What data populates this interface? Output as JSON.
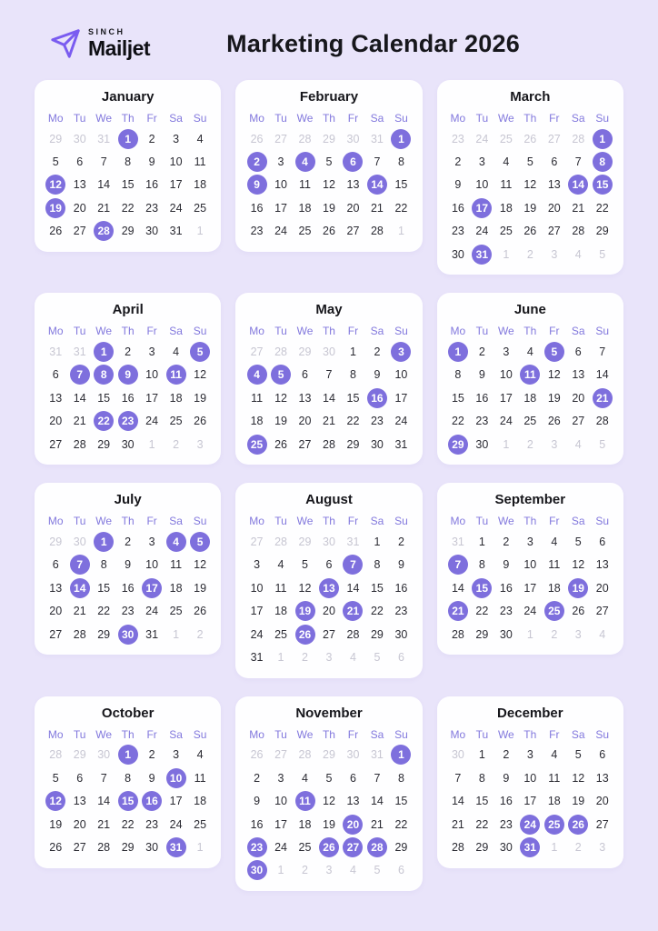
{
  "header": {
    "brand_top": "SINCH",
    "brand_name": "Mailjet",
    "title": "Marketing Calendar 2026"
  },
  "colors": {
    "background": "#e9e4fa",
    "card": "#fefeff",
    "accent": "#7e6fdd",
    "weekday_label": "#8278dd",
    "day_text": "#2b2b33",
    "muted_day_text": "#c7c6d2",
    "title_text": "#17171c",
    "logo_purple": "#7a5cf0"
  },
  "weekdays": [
    "Mo",
    "Tu",
    "We",
    "Th",
    "Fr",
    "Sa",
    "Su"
  ],
  "legend": {
    "muted_suffix": "m = day from adjacent month (grayed)",
    "highlight_suffix": "h = marketing date highlighted with purple circle"
  },
  "months": [
    {
      "name": "January",
      "cells": [
        "29m",
        "30m",
        "31m",
        "1h",
        "2",
        "3",
        "4",
        "5",
        "6",
        "7",
        "8",
        "9",
        "10",
        "11",
        "12h",
        "13",
        "14",
        "15",
        "16",
        "17",
        "18",
        "19h",
        "20",
        "21",
        "22",
        "23",
        "24",
        "25",
        "26",
        "27",
        "28h",
        "29",
        "30",
        "31",
        "1m"
      ]
    },
    {
      "name": "February",
      "cells": [
        "26m",
        "27m",
        "28m",
        "29m",
        "30m",
        "31m",
        "1h",
        "2h",
        "3",
        "4h",
        "5",
        "6h",
        "7",
        "8",
        "9h",
        "10",
        "11",
        "12",
        "13",
        "14h",
        "15",
        "16",
        "17",
        "18",
        "19",
        "20",
        "21",
        "22",
        "23",
        "24",
        "25",
        "26",
        "27",
        "28",
        "1m"
      ]
    },
    {
      "name": "March",
      "cells": [
        "23m",
        "24m",
        "25m",
        "26m",
        "27m",
        "28m",
        "1h",
        "2",
        "3",
        "4",
        "5",
        "6",
        "7",
        "8h",
        "9",
        "10",
        "11",
        "12",
        "13",
        "14h",
        "15h",
        "16",
        "17h",
        "18",
        "19",
        "20",
        "21",
        "22",
        "23",
        "24",
        "25",
        "26",
        "27",
        "28",
        "29",
        "30",
        "31h",
        "1m",
        "2m",
        "3m",
        "4m",
        "5m"
      ]
    },
    {
      "name": "April",
      "cells": [
        "31m",
        "31m",
        "1h",
        "2",
        "3",
        "4",
        "5h",
        "6",
        "7h",
        "8h",
        "9h",
        "10",
        "11h",
        "12",
        "13",
        "14",
        "15",
        "16",
        "17",
        "18",
        "19",
        "20",
        "21",
        "22h",
        "23h",
        "24",
        "25",
        "26",
        "27",
        "28",
        "29",
        "30",
        "1m",
        "2m",
        "3m"
      ]
    },
    {
      "name": "May",
      "cells": [
        "27m",
        "28m",
        "29m",
        "30m",
        "1",
        "2",
        "3h",
        "4h",
        "5h",
        "6",
        "7",
        "8",
        "9",
        "10",
        "11",
        "12",
        "13",
        "14",
        "15",
        "16h",
        "17",
        "18",
        "19",
        "20",
        "21",
        "22",
        "23",
        "24",
        "25h",
        "26",
        "27",
        "28",
        "29",
        "30",
        "31"
      ]
    },
    {
      "name": "June",
      "cells": [
        "1h",
        "2",
        "3",
        "4",
        "5h",
        "6",
        "7",
        "8",
        "9",
        "10",
        "11h",
        "12",
        "13",
        "14",
        "15",
        "16",
        "17",
        "18",
        "19",
        "20",
        "21h",
        "22",
        "23",
        "24",
        "25",
        "26",
        "27",
        "28",
        "29h",
        "30",
        "1m",
        "2m",
        "3m",
        "4m",
        "5m"
      ]
    },
    {
      "name": "July",
      "cells": [
        "29m",
        "30m",
        "1h",
        "2",
        "3",
        "4h",
        "5h",
        "6",
        "7h",
        "8",
        "9",
        "10",
        "11",
        "12",
        "13",
        "14h",
        "15",
        "16",
        "17h",
        "18",
        "19",
        "20",
        "21",
        "22",
        "23",
        "24",
        "25",
        "26",
        "27",
        "28",
        "29",
        "30h",
        "31",
        "1m",
        "2m"
      ]
    },
    {
      "name": "August",
      "cells": [
        "27m",
        "28m",
        "29m",
        "30m",
        "31m",
        "1",
        "2",
        "3",
        "4",
        "5",
        "6",
        "7h",
        "8",
        "9",
        "10",
        "11",
        "12",
        "13h",
        "14",
        "15",
        "16",
        "17",
        "18",
        "19h",
        "20",
        "21h",
        "22",
        "23",
        "24",
        "25",
        "26h",
        "27",
        "28",
        "29",
        "30",
        "31",
        "1m",
        "2m",
        "3m",
        "4m",
        "5m",
        "6m"
      ]
    },
    {
      "name": "September",
      "cells": [
        "31m",
        "1",
        "2",
        "3",
        "4",
        "5",
        "6",
        "7h",
        "8",
        "9",
        "10",
        "11",
        "12",
        "13",
        "14",
        "15h",
        "16",
        "17",
        "18",
        "19h",
        "20",
        "21h",
        "22",
        "23",
        "24",
        "25h",
        "26",
        "27",
        "28",
        "29",
        "30",
        "1m",
        "2m",
        "3m",
        "4m"
      ]
    },
    {
      "name": "October",
      "cells": [
        "28m",
        "29m",
        "30m",
        "1h",
        "2",
        "3",
        "4",
        "5",
        "6",
        "7",
        "8",
        "9",
        "10h",
        "11",
        "12h",
        "13",
        "14",
        "15h",
        "16h",
        "17",
        "18",
        "19",
        "20",
        "21",
        "22",
        "23",
        "24",
        "25",
        "26",
        "27",
        "28",
        "29",
        "30",
        "31h",
        "1m"
      ]
    },
    {
      "name": "November",
      "cells": [
        "26m",
        "27m",
        "28m",
        "29m",
        "30m",
        "31m",
        "1h",
        "2",
        "3",
        "4",
        "5",
        "6",
        "7",
        "8",
        "9",
        "10",
        "11h",
        "12",
        "13",
        "14",
        "15",
        "16",
        "17",
        "18",
        "19",
        "20h",
        "21",
        "22",
        "23h",
        "24",
        "25",
        "26h",
        "27h",
        "28h",
        "29",
        "30h",
        "1m",
        "2m",
        "3m",
        "4m",
        "5m",
        "6m"
      ]
    },
    {
      "name": "December",
      "cells": [
        "30m",
        "1",
        "2",
        "3",
        "4",
        "5",
        "6",
        "7",
        "8",
        "9",
        "10",
        "11",
        "12",
        "13",
        "14",
        "15",
        "16",
        "17",
        "18",
        "19",
        "20",
        "21",
        "22",
        "23",
        "24h",
        "25h",
        "26h",
        "27",
        "28",
        "29",
        "30",
        "31h",
        "1m",
        "2m",
        "3m"
      ]
    }
  ]
}
